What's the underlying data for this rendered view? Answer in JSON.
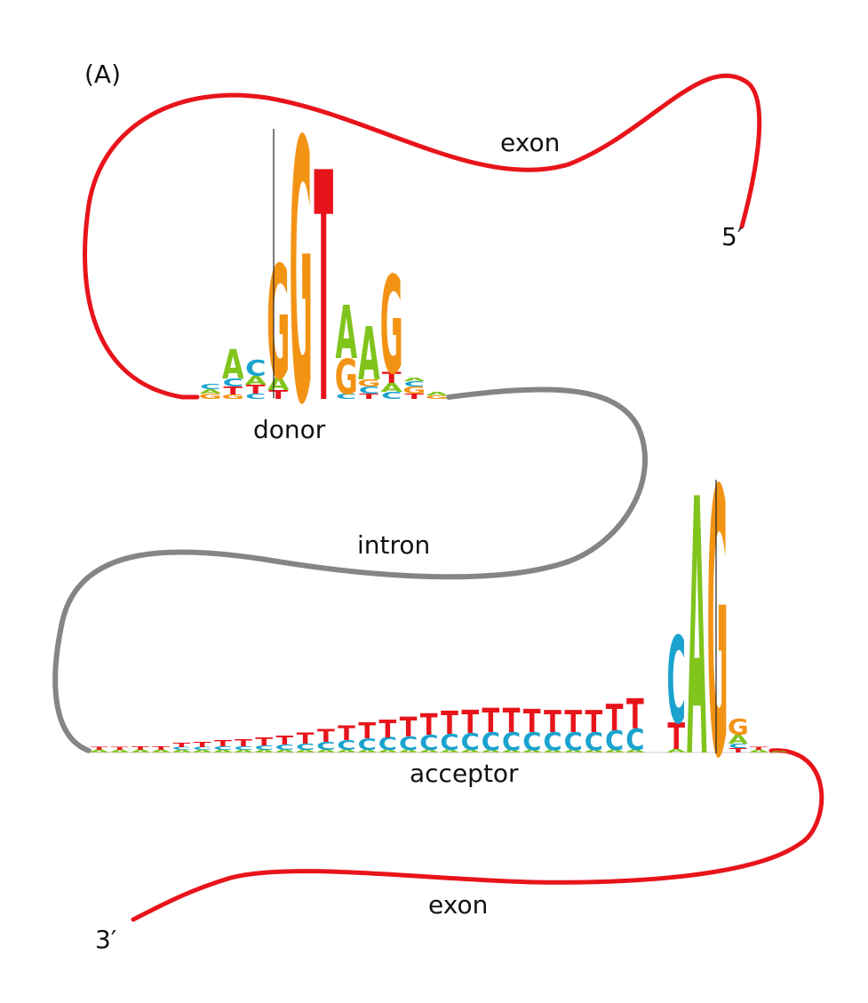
{
  "panel_label": "(A)",
  "labels": {
    "exon_top": "exon",
    "five_prime": "5′",
    "donor": "donor",
    "intron": "intron",
    "acceptor": "acceptor",
    "exon_bottom": "exon",
    "three_prime": "3′"
  },
  "colors": {
    "exon_line": "#e8141b",
    "intron_line": "#858585",
    "A": "#80c41c",
    "C": "#1aa3cf",
    "G": "#f39314",
    "T": "#e8141b"
  },
  "donor_logo": {
    "columns": [
      [
        {
          "base": "G",
          "h": 6
        },
        {
          "base": "A",
          "h": 5
        },
        {
          "base": "C",
          "h": 6
        }
      ],
      [
        {
          "base": "G",
          "h": 5
        },
        {
          "base": "T",
          "h": 9
        },
        {
          "base": "C",
          "h": 9
        },
        {
          "base": "A",
          "h": 33
        }
      ],
      [
        {
          "base": "C",
          "h": 6
        },
        {
          "base": "T",
          "h": 10
        },
        {
          "base": "A",
          "h": 10
        },
        {
          "base": "C",
          "h": 18
        }
      ],
      [
        {
          "base": "T",
          "h": 10
        },
        {
          "base": "A",
          "h": 14
        },
        {
          "base": "G",
          "h": 128
        }
      ],
      [
        {
          "base": "G",
          "h": 295
        }
      ],
      [
        {
          "base": "T",
          "h": 259
        }
      ],
      [
        {
          "base": "C",
          "h": 6
        },
        {
          "base": "G",
          "h": 40
        },
        {
          "base": "A",
          "h": 60
        }
      ],
      [
        {
          "base": "T",
          "h": 6
        },
        {
          "base": "C",
          "h": 8
        },
        {
          "base": "G",
          "h": 8
        },
        {
          "base": "A",
          "h": 60
        }
      ],
      [
        {
          "base": "C",
          "h": 8
        },
        {
          "base": "A",
          "h": 10
        },
        {
          "base": "T",
          "h": 12
        },
        {
          "base": "G",
          "h": 110
        }
      ],
      [
        {
          "base": "T",
          "h": 6
        },
        {
          "base": "G",
          "h": 8
        },
        {
          "base": "C",
          "h": 6
        },
        {
          "base": "A",
          "h": 4
        }
      ],
      [
        {
          "base": "G",
          "h": 4
        },
        {
          "base": "A",
          "h": 4
        }
      ]
    ]
  },
  "acceptor_logo": {
    "columns": [
      [
        {
          "base": "A",
          "h": 3
        },
        {
          "base": "T",
          "h": 3
        }
      ],
      [
        {
          "base": "A",
          "h": 3
        },
        {
          "base": "T",
          "h": 3
        }
      ],
      [
        {
          "base": "A",
          "h": 3
        },
        {
          "base": "T",
          "h": 4
        }
      ],
      [
        {
          "base": "A",
          "h": 3
        },
        {
          "base": "T",
          "h": 4
        }
      ],
      [
        {
          "base": "A",
          "h": 3
        },
        {
          "base": "C",
          "h": 3
        },
        {
          "base": "T",
          "h": 5
        }
      ],
      [
        {
          "base": "A",
          "h": 3
        },
        {
          "base": "C",
          "h": 3
        },
        {
          "base": "T",
          "h": 6
        }
      ],
      [
        {
          "base": "A",
          "h": 3
        },
        {
          "base": "C",
          "h": 4
        },
        {
          "base": "T",
          "h": 7
        }
      ],
      [
        {
          "base": "A",
          "h": 3
        },
        {
          "base": "C",
          "h": 4
        },
        {
          "base": "T",
          "h": 8
        }
      ],
      [
        {
          "base": "A",
          "h": 3
        },
        {
          "base": "C",
          "h": 5
        },
        {
          "base": "T",
          "h": 9
        }
      ],
      [
        {
          "base": "A",
          "h": 3
        },
        {
          "base": "C",
          "h": 6
        },
        {
          "base": "T",
          "h": 10
        }
      ],
      [
        {
          "base": "A",
          "h": 3
        },
        {
          "base": "C",
          "h": 7
        },
        {
          "base": "T",
          "h": 12
        }
      ],
      [
        {
          "base": "A",
          "h": 3
        },
        {
          "base": "C",
          "h": 9
        },
        {
          "base": "T",
          "h": 14
        }
      ],
      [
        {
          "base": "A",
          "h": 3
        },
        {
          "base": "C",
          "h": 11
        },
        {
          "base": "T",
          "h": 16
        }
      ],
      [
        {
          "base": "A",
          "h": 3
        },
        {
          "base": "C",
          "h": 13
        },
        {
          "base": "T",
          "h": 18
        }
      ],
      [
        {
          "base": "A",
          "h": 3
        },
        {
          "base": "C",
          "h": 14
        },
        {
          "base": "T",
          "h": 20
        }
      ],
      [
        {
          "base": "A",
          "h": 3
        },
        {
          "base": "C",
          "h": 15
        },
        {
          "base": "T",
          "h": 22
        }
      ],
      [
        {
          "base": "A",
          "h": 3
        },
        {
          "base": "C",
          "h": 17
        },
        {
          "base": "T",
          "h": 24
        }
      ],
      [
        {
          "base": "A",
          "h": 3
        },
        {
          "base": "C",
          "h": 18
        },
        {
          "base": "T",
          "h": 26
        }
      ],
      [
        {
          "base": "A",
          "h": 3
        },
        {
          "base": "C",
          "h": 19
        },
        {
          "base": "T",
          "h": 26
        }
      ],
      [
        {
          "base": "A",
          "h": 3
        },
        {
          "base": "C",
          "h": 20
        },
        {
          "base": "T",
          "h": 27
        }
      ],
      [
        {
          "base": "A",
          "h": 3
        },
        {
          "base": "C",
          "h": 20
        },
        {
          "base": "T",
          "h": 27
        }
      ],
      [
        {
          "base": "A",
          "h": 3
        },
        {
          "base": "C",
          "h": 20
        },
        {
          "base": "T",
          "h": 26
        }
      ],
      [
        {
          "base": "A",
          "h": 3
        },
        {
          "base": "C",
          "h": 20
        },
        {
          "base": "T",
          "h": 25
        }
      ],
      [
        {
          "base": "A",
          "h": 3
        },
        {
          "base": "C",
          "h": 20
        },
        {
          "base": "T",
          "h": 25
        }
      ],
      [
        {
          "base": "A",
          "h": 3
        },
        {
          "base": "C",
          "h": 20
        },
        {
          "base": "T",
          "h": 25
        }
      ],
      [
        {
          "base": "A",
          "h": 3
        },
        {
          "base": "C",
          "h": 22
        },
        {
          "base": "T",
          "h": 30
        }
      ],
      [
        {
          "base": "A",
          "h": 3
        },
        {
          "base": "C",
          "h": 24
        },
        {
          "base": "T",
          "h": 34
        }
      ],
      [],
      [
        {
          "base": "A",
          "h": 4
        },
        {
          "base": "T",
          "h": 30
        },
        {
          "base": "C",
          "h": 98
        }
      ],
      [
        {
          "base": "A",
          "h": 290
        }
      ],
      [
        {
          "base": "G",
          "h": 300
        }
      ],
      [
        {
          "base": "T",
          "h": 5
        },
        {
          "base": "C",
          "h": 5
        },
        {
          "base": "A",
          "h": 10
        },
        {
          "base": "G",
          "h": 18
        }
      ],
      [
        {
          "base": "A",
          "h": 3
        },
        {
          "base": "T",
          "h": 3
        }
      ],
      [
        {
          "base": "A",
          "h": 2
        },
        {
          "base": "T",
          "h": 2
        }
      ]
    ]
  }
}
